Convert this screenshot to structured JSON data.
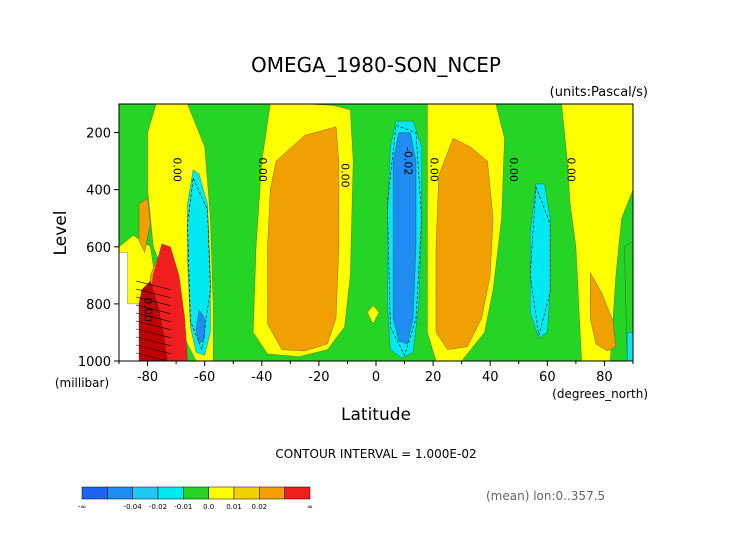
{
  "chart_data": {
    "type": "heatmap",
    "title": "OMEGA_1980-SON_NCEP",
    "units_label": "(units:Pascal/s)",
    "xlabel": "Latitude",
    "ylabel": "Level",
    "x_unit_label": "(degrees_north)",
    "y_unit_label": "(millibar)",
    "xlim": [
      -90,
      90
    ],
    "ylim": [
      1000,
      100
    ],
    "x_ticks": [
      -80,
      -60,
      -40,
      -20,
      0,
      20,
      40,
      60,
      80
    ],
    "y_ticks": [
      200,
      400,
      600,
      800,
      1000
    ],
    "contour_interval_text": "CONTOUR INTERVAL = 1.000E-02",
    "footer_text": "(mean) lon:0..357.5",
    "contour_labels": [
      {
        "text": "0.00",
        "x": -71,
        "y": 330
      },
      {
        "text": "0.00",
        "x": -41,
        "y": 330
      },
      {
        "text": "0.00",
        "x": -12,
        "y": 350
      },
      {
        "text": "-0.02",
        "x": 10,
        "y": 300
      },
      {
        "text": "0.00",
        "x": 19,
        "y": 330
      },
      {
        "text": "0.00",
        "x": 47,
        "y": 330
      },
      {
        "text": "0.00",
        "x": 67,
        "y": 330
      },
      {
        "text": "0.00",
        "x": -81,
        "y": 820
      }
    ],
    "colorbar": {
      "colors": [
        "#1e64f0",
        "#1e8cf0",
        "#1ec8f0",
        "#00e8f0",
        "#26d426",
        "#ffff00",
        "#f0d200",
        "#f0a000",
        "#f01e1e"
      ],
      "labels": [
        "-∞",
        "-0.04",
        "-0.02",
        "-0.01",
        "0.0",
        "0.01",
        "0.02",
        "∞"
      ]
    },
    "palette": {
      "green": "#26d426",
      "yellow": "#ffff00",
      "orange": "#f0a000",
      "red": "#f01e1e",
      "dark_red": "#c00000",
      "cyan": "#00e8f0",
      "blue": "#1e8cf0"
    }
  }
}
